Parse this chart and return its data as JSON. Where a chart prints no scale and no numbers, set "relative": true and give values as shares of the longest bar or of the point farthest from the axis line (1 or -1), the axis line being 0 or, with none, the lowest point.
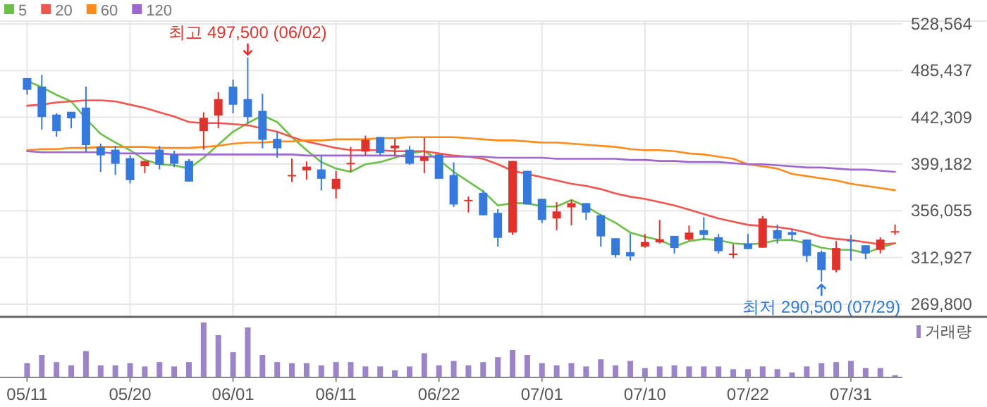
{
  "chart_data": [
    {
      "type": "candlestick",
      "categories": [
        null,
        null,
        null,
        null,
        null,
        null,
        null,
        null,
        null,
        null,
        null,
        null,
        null,
        null,
        null,
        null,
        null,
        null,
        null,
        null,
        null,
        null,
        null,
        null,
        null,
        null,
        null,
        null,
        null,
        null,
        null,
        null,
        null,
        null,
        null,
        null,
        null,
        null,
        null,
        null,
        null,
        null,
        null,
        null,
        null,
        null,
        null,
        null,
        null,
        null,
        null,
        null,
        null,
        null,
        null,
        null,
        null,
        null,
        null,
        null
      ],
      "ohlc": [
        [
          478500,
          478500,
          463300,
          467700
        ],
        [
          470700,
          481500,
          430900,
          442600
        ],
        [
          444800,
          446100,
          424400,
          429600
        ],
        [
          447400,
          447400,
          432200,
          441300
        ],
        [
          451300,
          470700,
          410200,
          416700
        ],
        [
          415000,
          418000,
          392000,
          407200
        ],
        [
          412400,
          415900,
          389100,
          399400
        ],
        [
          404600,
          407200,
          381300,
          384300
        ],
        [
          397200,
          402000,
          390700,
          402000
        ],
        [
          412400,
          415900,
          394200,
          398500
        ],
        [
          408100,
          411500,
          396400,
          399400
        ],
        [
          402000,
          403700,
          383000,
          383000
        ],
        [
          429600,
          447000,
          412400,
          441800
        ],
        [
          443900,
          465500,
          432200,
          459100
        ],
        [
          470700,
          477200,
          446100,
          453900
        ],
        [
          459100,
          497500,
          436600,
          442600
        ],
        [
          448300,
          464200,
          413700,
          421500
        ],
        [
          422400,
          428900,
          405000,
          413700
        ],
        [
          388700,
          404200,
          382600,
          389100
        ],
        [
          393300,
          401600,
          384800,
          396800
        ],
        [
          394200,
          407200,
          374800,
          385600
        ],
        [
          376100,
          392900,
          367400,
          385600
        ],
        [
          399800,
          415000,
          392000,
          400300
        ],
        [
          410700,
          425400,
          407200,
          421500
        ],
        [
          424100,
          424100,
          407200,
          409400
        ],
        [
          413700,
          422400,
          406300,
          416300
        ],
        [
          412400,
          415900,
          398500,
          399400
        ],
        [
          402000,
          423200,
          390700,
          405900
        ],
        [
          408100,
          408100,
          385600,
          385600
        ],
        [
          389100,
          400700,
          359600,
          361800
        ],
        [
          365300,
          369200,
          354400,
          366100
        ],
        [
          372600,
          374800,
          351900,
          351900
        ],
        [
          354100,
          357600,
          322900,
          331100
        ],
        [
          335900,
          402000,
          333700,
          402000
        ],
        [
          392900,
          392900,
          361800,
          361800
        ],
        [
          367000,
          367000,
          344600,
          347600
        ],
        [
          348900,
          364000,
          338100,
          355400
        ],
        [
          359200,
          366100,
          342400,
          363100
        ],
        [
          363100,
          363100,
          347600,
          354400
        ],
        [
          351900,
          352800,
          322900,
          332400
        ],
        [
          330700,
          330700,
          313000,
          315200
        ],
        [
          317800,
          335000,
          310000,
          313900
        ],
        [
          322900,
          334600,
          322000,
          327200
        ],
        [
          326800,
          347600,
          325900,
          329800
        ],
        [
          332900,
          332900,
          316500,
          321700
        ],
        [
          329400,
          342400,
          328500,
          335900
        ],
        [
          338100,
          350200,
          329400,
          333700
        ],
        [
          331600,
          334600,
          316500,
          318700
        ],
        [
          316100,
          325200,
          312200,
          316500
        ],
        [
          325900,
          334600,
          320700,
          320700
        ],
        [
          322000,
          351100,
          322000,
          348900
        ],
        [
          338100,
          343300,
          325900,
          330300
        ],
        [
          336300,
          339400,
          328500,
          333700
        ],
        [
          329400,
          329400,
          308700,
          314300
        ],
        [
          317800,
          319400,
          290500,
          301300
        ],
        [
          301300,
          328100,
          299200,
          321700
        ],
        [
          329000,
          333700,
          310000,
          328100
        ],
        [
          324200,
          324200,
          311300,
          316500
        ],
        [
          320000,
          331600,
          316500,
          329400
        ],
        [
          336800,
          343300,
          333700,
          337200
        ]
      ],
      "series": [
        {
          "name": "5",
          "type": "line",
          "color": "#6cc04a",
          "values": [
            476000,
            470000,
            463000,
            457000,
            441000,
            427000,
            419000,
            412000,
            403000,
            399000,
            398000,
            395000,
            405000,
            417000,
            429000,
            437000,
            444000,
            438000,
            424000,
            412000,
            401000,
            395000,
            392000,
            399000,
            401000,
            405000,
            409000,
            411000,
            403000,
            392000,
            383000,
            374000,
            361000,
            363000,
            363000,
            360000,
            360000,
            366000,
            360000,
            352000,
            345000,
            336000,
            332000,
            329000,
            323000,
            328000,
            330000,
            329000,
            326000,
            325000,
            326000,
            329000,
            329000,
            326000,
            322000,
            320000,
            320000,
            317000,
            322000,
            326000
          ]
        },
        {
          "name": "20",
          "type": "line",
          "color": "#f05650",
          "values": [
            453000,
            454000,
            456000,
            457000,
            458000,
            458000,
            457000,
            454000,
            451000,
            447000,
            443000,
            438000,
            437000,
            437000,
            436000,
            435000,
            432000,
            429000,
            424000,
            420000,
            417000,
            414000,
            412000,
            412000,
            412000,
            411000,
            411000,
            411000,
            409000,
            407000,
            406000,
            404000,
            399000,
            393000,
            390000,
            387000,
            384000,
            381000,
            379000,
            376000,
            372000,
            369000,
            367000,
            364000,
            361000,
            357000,
            353000,
            349000,
            346000,
            343000,
            342000,
            341000,
            339000,
            336000,
            332000,
            330000,
            329000,
            327000,
            325000,
            326000
          ]
        },
        {
          "name": "60",
          "type": "line",
          "color": "#ff8c1a",
          "values": [
            412000,
            413000,
            413000,
            414000,
            414000,
            415000,
            415000,
            415000,
            415000,
            414000,
            414000,
            414000,
            415000,
            416000,
            418000,
            419000,
            419000,
            420000,
            420000,
            421000,
            421000,
            422000,
            422000,
            422000,
            423000,
            423000,
            424000,
            424000,
            424000,
            424000,
            423000,
            422000,
            421000,
            421000,
            420000,
            419000,
            419000,
            418000,
            417000,
            416000,
            415000,
            413000,
            412000,
            412000,
            411000,
            409000,
            408000,
            406000,
            404000,
            399000,
            397000,
            395000,
            390000,
            388000,
            386000,
            384000,
            381000,
            379000,
            377000,
            375000
          ]
        },
        {
          "name": "120",
          "type": "line",
          "color": "#a066d0",
          "values": [
            411000,
            410000,
            410000,
            410000,
            410000,
            410000,
            409000,
            409000,
            409000,
            409000,
            408000,
            408000,
            408000,
            408000,
            408000,
            408000,
            408000,
            408000,
            408000,
            407000,
            407000,
            407000,
            407000,
            407000,
            407000,
            407000,
            406000,
            406000,
            406000,
            406000,
            406000,
            406000,
            405000,
            405000,
            405000,
            405000,
            404000,
            404000,
            404000,
            404000,
            404000,
            403000,
            403000,
            402000,
            402000,
            401000,
            401000,
            401000,
            400000,
            399000,
            399000,
            398000,
            397000,
            396000,
            396000,
            395000,
            394000,
            394000,
            393000,
            392000
          ]
        }
      ],
      "ylim": [
        258100,
        531100
      ],
      "yticks": [
        {
          "value": 269800,
          "label": "269,800"
        },
        {
          "value": 312927,
          "label": "312,927"
        },
        {
          "value": 356055,
          "label": "356,055"
        },
        {
          "value": 399182,
          "label": "399,182"
        },
        {
          "value": 442309,
          "label": "442,309"
        },
        {
          "value": 485437,
          "label": "485,437"
        },
        {
          "value": 528564,
          "label": "528,564"
        }
      ],
      "grid": true,
      "legend": "top left",
      "tick_labels": "y",
      "annotations": [
        {
          "text": "최고 497,500 (06/02)",
          "y": 497500
        },
        {
          "text": "최저 290,500 (07/29)",
          "y": 290500
        }
      ]
    },
    {
      "type": "bar",
      "relative": true,
      "categories": [
        "05/11",
        null,
        null,
        null,
        null,
        null,
        null,
        "05/20",
        null,
        null,
        null,
        null,
        null,
        null,
        "06/01",
        null,
        null,
        null,
        null,
        null,
        null,
        "06/11",
        null,
        null,
        null,
        null,
        null,
        null,
        "06/22",
        null,
        null,
        null,
        null,
        null,
        null,
        "07/01",
        null,
        null,
        null,
        null,
        null,
        null,
        "07/10",
        null,
        null,
        null,
        null,
        null,
        null,
        "07/22",
        null,
        null,
        null,
        null,
        null,
        null,
        "07/31",
        null,
        null,
        null
      ],
      "series": [
        {
          "name": "거래량",
          "color": "#9b84c9",
          "values": [
            0.26,
            0.41,
            0.28,
            0.22,
            0.48,
            0.22,
            0.22,
            0.26,
            0.2,
            0.28,
            0.2,
            0.28,
            1,
            0.77,
            0.46,
            0.91,
            0.41,
            0.28,
            0.26,
            0.26,
            0.22,
            0.28,
            0.28,
            0.2,
            0.2,
            0.13,
            0.2,
            0.44,
            0.22,
            0.3,
            0.22,
            0.28,
            0.37,
            0.5,
            0.41,
            0.26,
            0.22,
            0.26,
            0.2,
            0.33,
            0.22,
            0.3,
            0.17,
            0.2,
            0.22,
            0.2,
            0.2,
            0.2,
            0.15,
            0.15,
            0.2,
            0.15,
            0.09,
            0.2,
            0.26,
            0.28,
            0.3,
            0.17,
            0.17,
            0.04
          ]
        }
      ],
      "legend": "top right",
      "tick_labels": "x"
    }
  ]
}
